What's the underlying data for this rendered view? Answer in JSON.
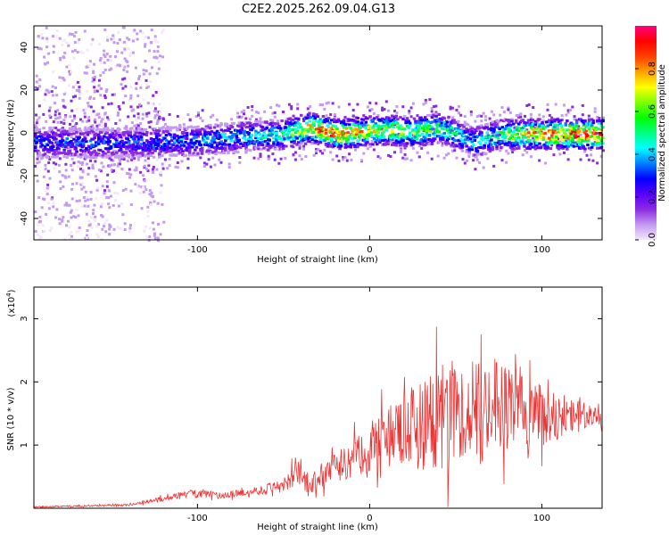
{
  "figure_title": "C2E2.2025.262.09.04.G13",
  "chart_data": [
    {
      "type": "heatmap",
      "name": "spectrogram",
      "xlabel": "Height of straight line (km)",
      "ylabel": "Frequency (Hz)",
      "xlim": [
        -195,
        135
      ],
      "ylim": [
        -50,
        50
      ],
      "xticks": [
        -100,
        0,
        100
      ],
      "yticks": [
        -40,
        -20,
        0,
        20,
        40
      ],
      "colorbar": {
        "label": "Normalized spectral amplitude",
        "range": [
          0,
          1
        ],
        "ticks": [
          "0.0",
          "0.2",
          "0.4",
          "0.6",
          "0.8"
        ],
        "colors": [
          "#f4e6fb",
          "#c49af0",
          "#8a2be2",
          "#5a00ff",
          "#0000ff",
          "#0080ff",
          "#00ffff",
          "#00ff80",
          "#00ff00",
          "#80ff00",
          "#ffff00",
          "#ffa000",
          "#ff4000",
          "#ff0000",
          "#ff0080"
        ]
      },
      "ridge": {
        "x": [
          -130,
          -100,
          -70,
          -50,
          -35,
          -20,
          -5,
          10,
          25,
          40,
          50,
          60,
          75,
          90,
          105,
          120,
          135
        ],
        "center_hz": [
          -4,
          -3,
          -1,
          0,
          3,
          0,
          1,
          2,
          1,
          3,
          0,
          -4,
          0,
          0,
          0,
          0,
          0
        ],
        "peak_amplitude": [
          0.35,
          0.4,
          0.45,
          0.55,
          0.85,
          0.9,
          0.8,
          0.7,
          0.65,
          0.6,
          0.5,
          0.45,
          0.55,
          0.8,
          0.9,
          0.95,
          0.95
        ]
      }
    },
    {
      "type": "line",
      "name": "snr",
      "color": "#ee3333",
      "xlabel": "Height of straight line (km)",
      "ylabel": "SNR (10 * v/v)",
      "y_multiplier": "(x10",
      "y_multiplier_exp": "4",
      "y_multiplier_close": ")",
      "xlim": [
        -195,
        135
      ],
      "ylim": [
        0,
        3.5
      ],
      "xticks": [
        -100,
        0,
        100
      ],
      "yticks": [
        1,
        2,
        3
      ],
      "envelope": {
        "x": [
          -195,
          -140,
          -130,
          -110,
          -100,
          -90,
          -70,
          -60,
          -50,
          -40,
          -35,
          -30,
          -20,
          -10,
          0,
          10,
          20,
          30,
          40,
          50,
          60,
          70,
          80,
          90,
          100,
          110,
          120,
          130,
          135
        ],
        "mean": [
          0.02,
          0.05,
          0.1,
          0.2,
          0.25,
          0.2,
          0.25,
          0.3,
          0.4,
          0.55,
          0.3,
          0.5,
          0.6,
          0.8,
          0.95,
          1.1,
          1.2,
          1.35,
          1.45,
          1.55,
          1.6,
          1.65,
          1.6,
          1.55,
          1.5,
          1.45,
          1.45,
          1.45,
          1.45
        ],
        "spread": [
          0.02,
          0.03,
          0.05,
          0.1,
          0.15,
          0.1,
          0.1,
          0.15,
          0.2,
          0.45,
          0.2,
          0.35,
          0.45,
          0.55,
          0.7,
          0.9,
          1.1,
          1.35,
          1.6,
          1.5,
          1.4,
          1.5,
          1.2,
          1.0,
          0.85,
          0.7,
          0.5,
          0.3,
          0.25
        ]
      }
    }
  ]
}
